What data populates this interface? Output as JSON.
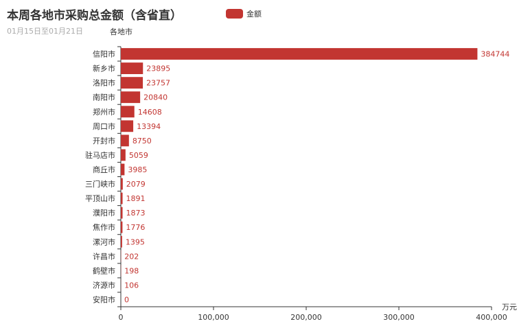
{
  "title": "本周各地市采购总金额（含省直）",
  "subtitle": "01月15日至01月21日",
  "legend": [
    "金额"
  ],
  "colors": {
    "bar": "#c23531",
    "label": "#c23531",
    "axis": "#333333"
  },
  "chart_data": {
    "type": "bar",
    "orientation": "horizontal",
    "ylabel": "各地市",
    "xlabel": "万元",
    "xlim": [
      0,
      400000
    ],
    "xticks": [
      "0",
      "100,000",
      "200,000",
      "300,000",
      "400,000"
    ],
    "grid": false,
    "legend_position": "top",
    "series": [
      {
        "name": "金额",
        "values": [
          384744,
          23895,
          23757,
          20840,
          14608,
          13394,
          8750,
          5059,
          3985,
          2079,
          1891,
          1873,
          1776,
          1395,
          202,
          198,
          106,
          0
        ]
      }
    ],
    "categories": [
      "信阳市",
      "新乡市",
      "洛阳市",
      "南阳市",
      "郑州市",
      "周口市",
      "开封市",
      "驻马店市",
      "商丘市",
      "三门峡市",
      "平顶山市",
      "濮阳市",
      "焦作市",
      "漯河市",
      "许昌市",
      "鹤壁市",
      "济源市",
      "安阳市"
    ]
  }
}
